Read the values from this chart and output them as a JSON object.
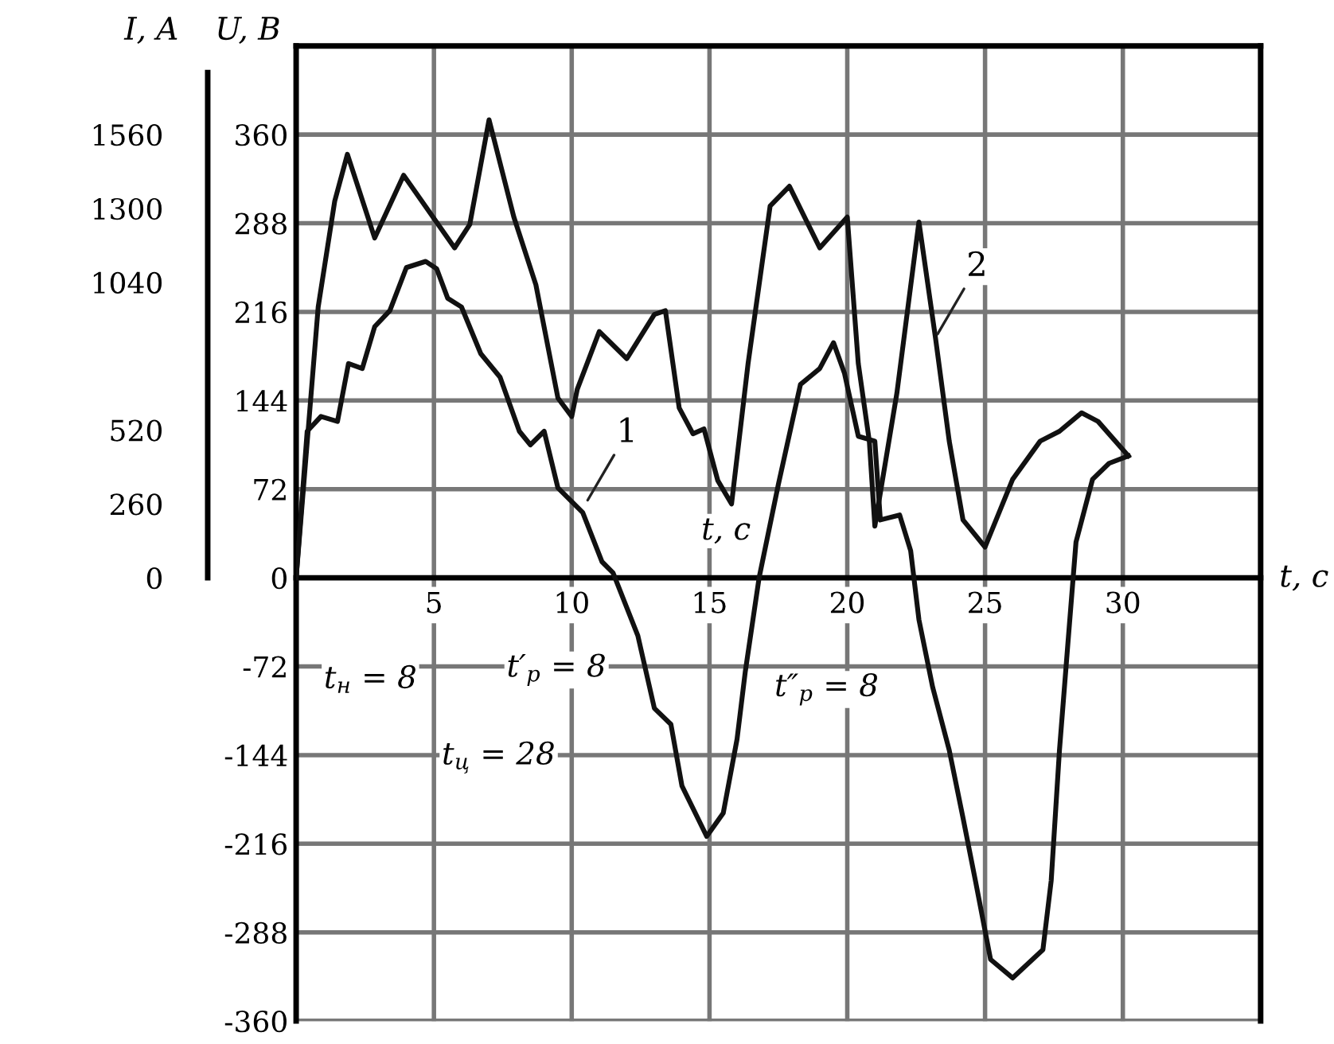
{
  "chart_data": {
    "type": "line",
    "xlabel": "t, с",
    "ylabel": "U, В",
    "y2label": "I, A",
    "xlim": [
      0,
      35
    ],
    "xticks": [
      5,
      10,
      15,
      20,
      25,
      30
    ],
    "ylim": [
      -360,
      432
    ],
    "yticks": [
      -360,
      -288,
      -216,
      -144,
      -72,
      0,
      72,
      144,
      216,
      288,
      360
    ],
    "y2lim": [
      -1560,
      1872
    ],
    "y2ticks": [
      0,
      260,
      520,
      1040,
      1300,
      1560
    ],
    "grid": true,
    "line_style": "solid",
    "marker": "none",
    "series": [
      {
        "color": "#111111",
        "x": [
          0,
          0.4,
          0.9,
          1.5,
          1.9,
          2.4,
          2.85,
          3.4,
          4.0,
          4.7,
          5.1,
          5.5,
          6.0,
          6.7,
          7.4,
          8.1,
          8.5,
          9.0,
          9.5,
          10.4,
          11.1,
          11.5,
          12.4,
          13.0,
          13.6,
          14.0,
          14.9,
          15.5,
          16.0,
          16.3,
          16.8,
          17.5,
          18.3,
          19.0,
          19.5,
          19.9,
          20.4,
          21.0,
          21.2,
          21.9,
          22.3,
          22.6,
          23.1,
          23.7,
          24.2,
          24.65,
          25.2,
          26.0,
          27.1,
          27.4,
          27.7,
          28.0,
          28.3,
          28.9,
          29.5,
          30.2
        ],
        "values": [
          0,
          119,
          131,
          127,
          174,
          170,
          204,
          217,
          252,
          257,
          251,
          227,
          220,
          182,
          163,
          119,
          108,
          119,
          73,
          53,
          13,
          4,
          -47,
          -106,
          -119,
          -169,
          -210,
          -191,
          -131,
          -76,
          0,
          76,
          157,
          170,
          191,
          166,
          115,
          111,
          47,
          51,
          22,
          -34,
          -89,
          -140,
          -195,
          -246,
          -310,
          -325,
          -302,
          -246,
          -140,
          -55,
          29,
          80,
          93,
          99
        ]
      },
      {
        "color": "#111111",
        "x": [
          0,
          0.8,
          1.4,
          1.86,
          2.85,
          3.9,
          5.75,
          6.3,
          7.0,
          7.9,
          8.7,
          9.5,
          10.0,
          10.2,
          11.0,
          12.0,
          13.0,
          13.4,
          13.9,
          14.4,
          14.8,
          15.3,
          15.8,
          16.4,
          17.2,
          17.9,
          19.0,
          20.0,
          20.4,
          20.8,
          21.0,
          21.8,
          22.6,
          23.2,
          23.7,
          24.2,
          25.0,
          26.0,
          27.0,
          27.7,
          28.5,
          29.1,
          30.2
        ],
        "values": [
          0,
          220,
          306,
          344,
          276,
          327,
          268,
          287,
          372,
          293,
          238,
          146,
          131,
          153,
          200,
          178,
          214,
          217,
          138,
          117,
          121,
          79,
          60,
          174,
          302,
          318,
          268,
          293,
          174,
          111,
          42,
          150,
          289,
          195,
          111,
          47,
          25,
          80,
          111,
          119,
          134,
          127,
          99
        ]
      }
    ],
    "annotations": [
      {
        "text": "1",
        "x": 10.5,
        "y": 60
      },
      {
        "text": "2",
        "x": 23.2,
        "y": 195
      },
      {
        "text": "t, с",
        "x": 15.6,
        "y": 38
      },
      "t$_{н}$ = 8",
      "t′$_{р}$ = 8",
      "t″$_{р}$ = 8",
      "t$_{ц}$ = 28"
    ]
  }
}
